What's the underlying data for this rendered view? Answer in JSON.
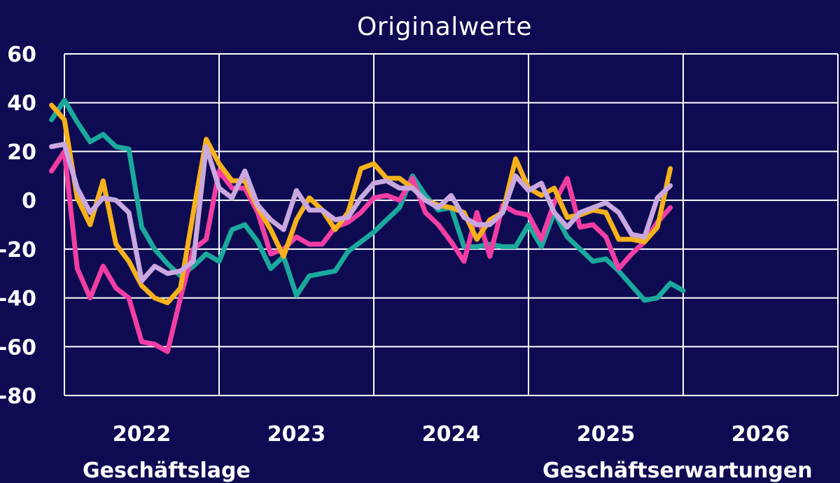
{
  "chart_data": {
    "type": "line",
    "title": "",
    "subtitle": "Originalwerte",
    "xlabel": "",
    "ylabel": "",
    "ylim": [
      -80,
      60
    ],
    "yticks": [
      60,
      40,
      20,
      0,
      -20,
      -40,
      -60,
      -80
    ],
    "xticks": [
      "2022",
      "2023",
      "2024",
      "2025",
      "2026"
    ],
    "grid": true,
    "legend_labels": [
      "Geschäftslage",
      "Geschäftserwartungen"
    ],
    "x_start": "2021-12",
    "colors": {
      "teal": "#1aa99c",
      "pink": "#f23ea4",
      "orange": "#f6b21b",
      "lavender": "#c9a8e0",
      "grid": "#ffffff",
      "background": "#0e0b52"
    },
    "series": [
      {
        "color": "#1aa99c",
        "values": [
          33,
          41,
          32,
          24,
          27,
          22,
          21,
          -11,
          -20,
          -26,
          -31,
          -27,
          -22,
          -25,
          -12,
          -10,
          -17,
          -28,
          -23,
          -39,
          -31,
          -30,
          -29,
          -21,
          -17,
          -13,
          -8,
          -3,
          10,
          2,
          -4,
          -3,
          -19,
          -19,
          -18,
          -19,
          -19,
          -10,
          -19,
          -5,
          -15,
          -20,
          -25,
          -24,
          -29,
          -35,
          -41,
          -40,
          -34,
          -37
        ]
      },
      {
        "color": "#f23ea4",
        "values": [
          12,
          20,
          -28,
          -40,
          -27,
          -36,
          -40,
          -58,
          -59,
          -62,
          -40,
          -20,
          -16,
          12,
          5,
          5,
          -5,
          -22,
          -20,
          -15,
          -18,
          -18,
          -11,
          -9,
          -5,
          1,
          2,
          0,
          9,
          -5,
          -10,
          -17,
          -25,
          -5,
          -23,
          -2,
          -5,
          -6,
          -16,
          -1,
          9,
          -11,
          -10,
          -15,
          -28,
          -22,
          -17,
          -9,
          -3
        ]
      },
      {
        "color": "#f6b21b",
        "values": [
          39,
          33,
          1,
          -10,
          8,
          -18,
          -25,
          -35,
          -40,
          -42,
          -36,
          -5,
          25,
          15,
          8,
          8,
          -3,
          -12,
          -23,
          -8,
          1,
          -4,
          -12,
          -5,
          13,
          15,
          9,
          9,
          5,
          0,
          -2,
          -3,
          -5,
          -16,
          -8,
          -5,
          17,
          5,
          2,
          5,
          -7,
          -6,
          -4,
          -5,
          -16,
          -16,
          -17,
          -11,
          13
        ]
      },
      {
        "color": "#c9a8e0",
        "values": [
          22,
          23,
          5,
          -5,
          1,
          0,
          -5,
          -33,
          -27,
          -30,
          -29,
          -25,
          22,
          5,
          1,
          12,
          -2,
          -8,
          -12,
          4,
          -4,
          -4,
          -8,
          -7,
          1,
          7,
          8,
          5,
          5,
          0,
          -3,
          2,
          -7,
          -10,
          -10,
          -5,
          10,
          4,
          7,
          -5,
          -11,
          -5,
          -3,
          -1,
          -5,
          -14,
          -15,
          1,
          6
        ]
      }
    ]
  }
}
